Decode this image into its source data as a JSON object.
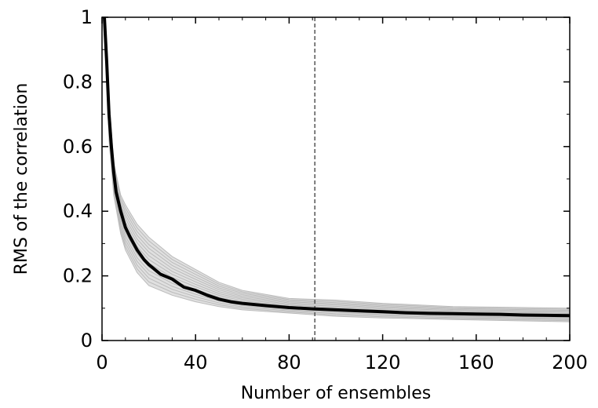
{
  "chart_data": {
    "type": "line",
    "title": "",
    "xlabel": "Number of ensembles",
    "ylabel": "RMS of the correlation",
    "xlim": [
      0,
      200
    ],
    "ylim": [
      0,
      1
    ],
    "x_ticks": [
      0,
      40,
      80,
      120,
      160,
      200
    ],
    "y_ticks": [
      0,
      0.2,
      0.4,
      0.6,
      0.8,
      1
    ],
    "x_tick_labels": [
      "0",
      "40",
      "80",
      "120",
      "160",
      "200"
    ],
    "y_tick_labels": [
      "0",
      "0.2",
      "0.4",
      "0.6",
      "0.8",
      "1"
    ],
    "grid": false,
    "legend": "none",
    "vertical_reference_line": {
      "x": 91,
      "style": "dashed",
      "color": "#555555"
    },
    "mean_series": {
      "color": "#000000",
      "x": [
        1,
        2,
        3,
        4,
        5,
        6,
        8,
        10,
        12,
        15,
        18,
        20,
        25,
        30,
        35,
        40,
        45,
        50,
        55,
        60,
        70,
        80,
        90,
        100,
        110,
        120,
        130,
        140,
        150,
        160,
        170,
        180,
        190,
        200
      ],
      "y": [
        1.0,
        0.86,
        0.7,
        0.6,
        0.52,
        0.46,
        0.4,
        0.35,
        0.32,
        0.28,
        0.25,
        0.235,
        0.205,
        0.19,
        0.165,
        0.155,
        0.14,
        0.128,
        0.12,
        0.115,
        0.108,
        0.102,
        0.098,
        0.095,
        0.092,
        0.089,
        0.086,
        0.084,
        0.083,
        0.082,
        0.081,
        0.079,
        0.078,
        0.077
      ]
    },
    "ensemble_spread": {
      "color": "#bbbbbb",
      "x": [
        1,
        3,
        5,
        8,
        10,
        15,
        20,
        30,
        40,
        50,
        60,
        80,
        100,
        120,
        150,
        200
      ],
      "upper": [
        1.0,
        0.75,
        0.55,
        0.45,
        0.42,
        0.36,
        0.32,
        0.26,
        0.22,
        0.18,
        0.155,
        0.13,
        0.125,
        0.115,
        0.105,
        0.1
      ],
      "lower": [
        1.0,
        0.62,
        0.45,
        0.33,
        0.28,
        0.21,
        0.17,
        0.14,
        0.12,
        0.105,
        0.095,
        0.085,
        0.075,
        0.07,
        0.065,
        0.058
      ]
    }
  }
}
